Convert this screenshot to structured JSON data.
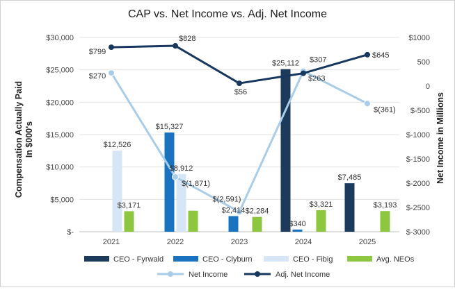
{
  "chart_data": {
    "type": "bar+line",
    "title": "CAP vs. Net Income vs. Adj. Net Income",
    "categories": [
      "2021",
      "2022",
      "2023",
      "2024",
      "2025"
    ],
    "left_axis": {
      "label_line1": "Compensation Actually Paid",
      "label_line2": "In $000's",
      "min": 0,
      "max": 30000,
      "step": 5000,
      "tick_labels": [
        "$-",
        "$5,000",
        "$10,000",
        "$15,000",
        "$20,000",
        "$25,000",
        "$30,000"
      ]
    },
    "right_axis": {
      "label": "Net Income in Millions",
      "min": -3000,
      "max": 1000,
      "step": 500,
      "tick_labels": [
        "$-3000",
        "$-2500",
        "$-2000",
        "$-1500",
        "$-1000",
        "$-500",
        "0",
        "500",
        "$1000"
      ]
    },
    "bar_series": [
      {
        "name": "CEO - Fyrwald",
        "color": "#1b3a5c",
        "values": [
          null,
          null,
          null,
          25112,
          7485
        ],
        "labels": [
          null,
          null,
          null,
          "$25,112",
          "$7,485"
        ]
      },
      {
        "name": "CEO - Clyburn",
        "color": "#1a73be",
        "values": [
          null,
          15327,
          2414,
          340,
          null
        ],
        "labels": [
          null,
          "$15,327",
          "$2,414",
          "$340",
          null
        ]
      },
      {
        "name": "CEO - Fibig",
        "color": "#d6e6f6",
        "values": [
          12526,
          8912,
          null,
          null,
          null
        ],
        "labels": [
          "$12,526",
          "$8,912",
          null,
          null,
          null
        ]
      },
      {
        "name": "Avg. NEOs",
        "color": "#8dc63f",
        "values": [
          3171,
          3248,
          2284,
          3321,
          3193
        ],
        "labels": [
          "$3,171",
          null,
          "$2,284",
          "$3,321",
          "$3,193"
        ]
      }
    ],
    "line_series": [
      {
        "name": "Net Income",
        "color": "#a9cde9",
        "values": [
          270,
          -1871,
          -2591,
          307,
          -361
        ],
        "labels": [
          "$270",
          "$(1,871)",
          "$(2,591)",
          "$307",
          "$(361)"
        ]
      },
      {
        "name": "Adj. Net Income",
        "color": "#17375e",
        "values": [
          799,
          828,
          56,
          263,
          645
        ],
        "labels": [
          "$799",
          "$828",
          "$56",
          "$263",
          "$645"
        ]
      }
    ]
  }
}
